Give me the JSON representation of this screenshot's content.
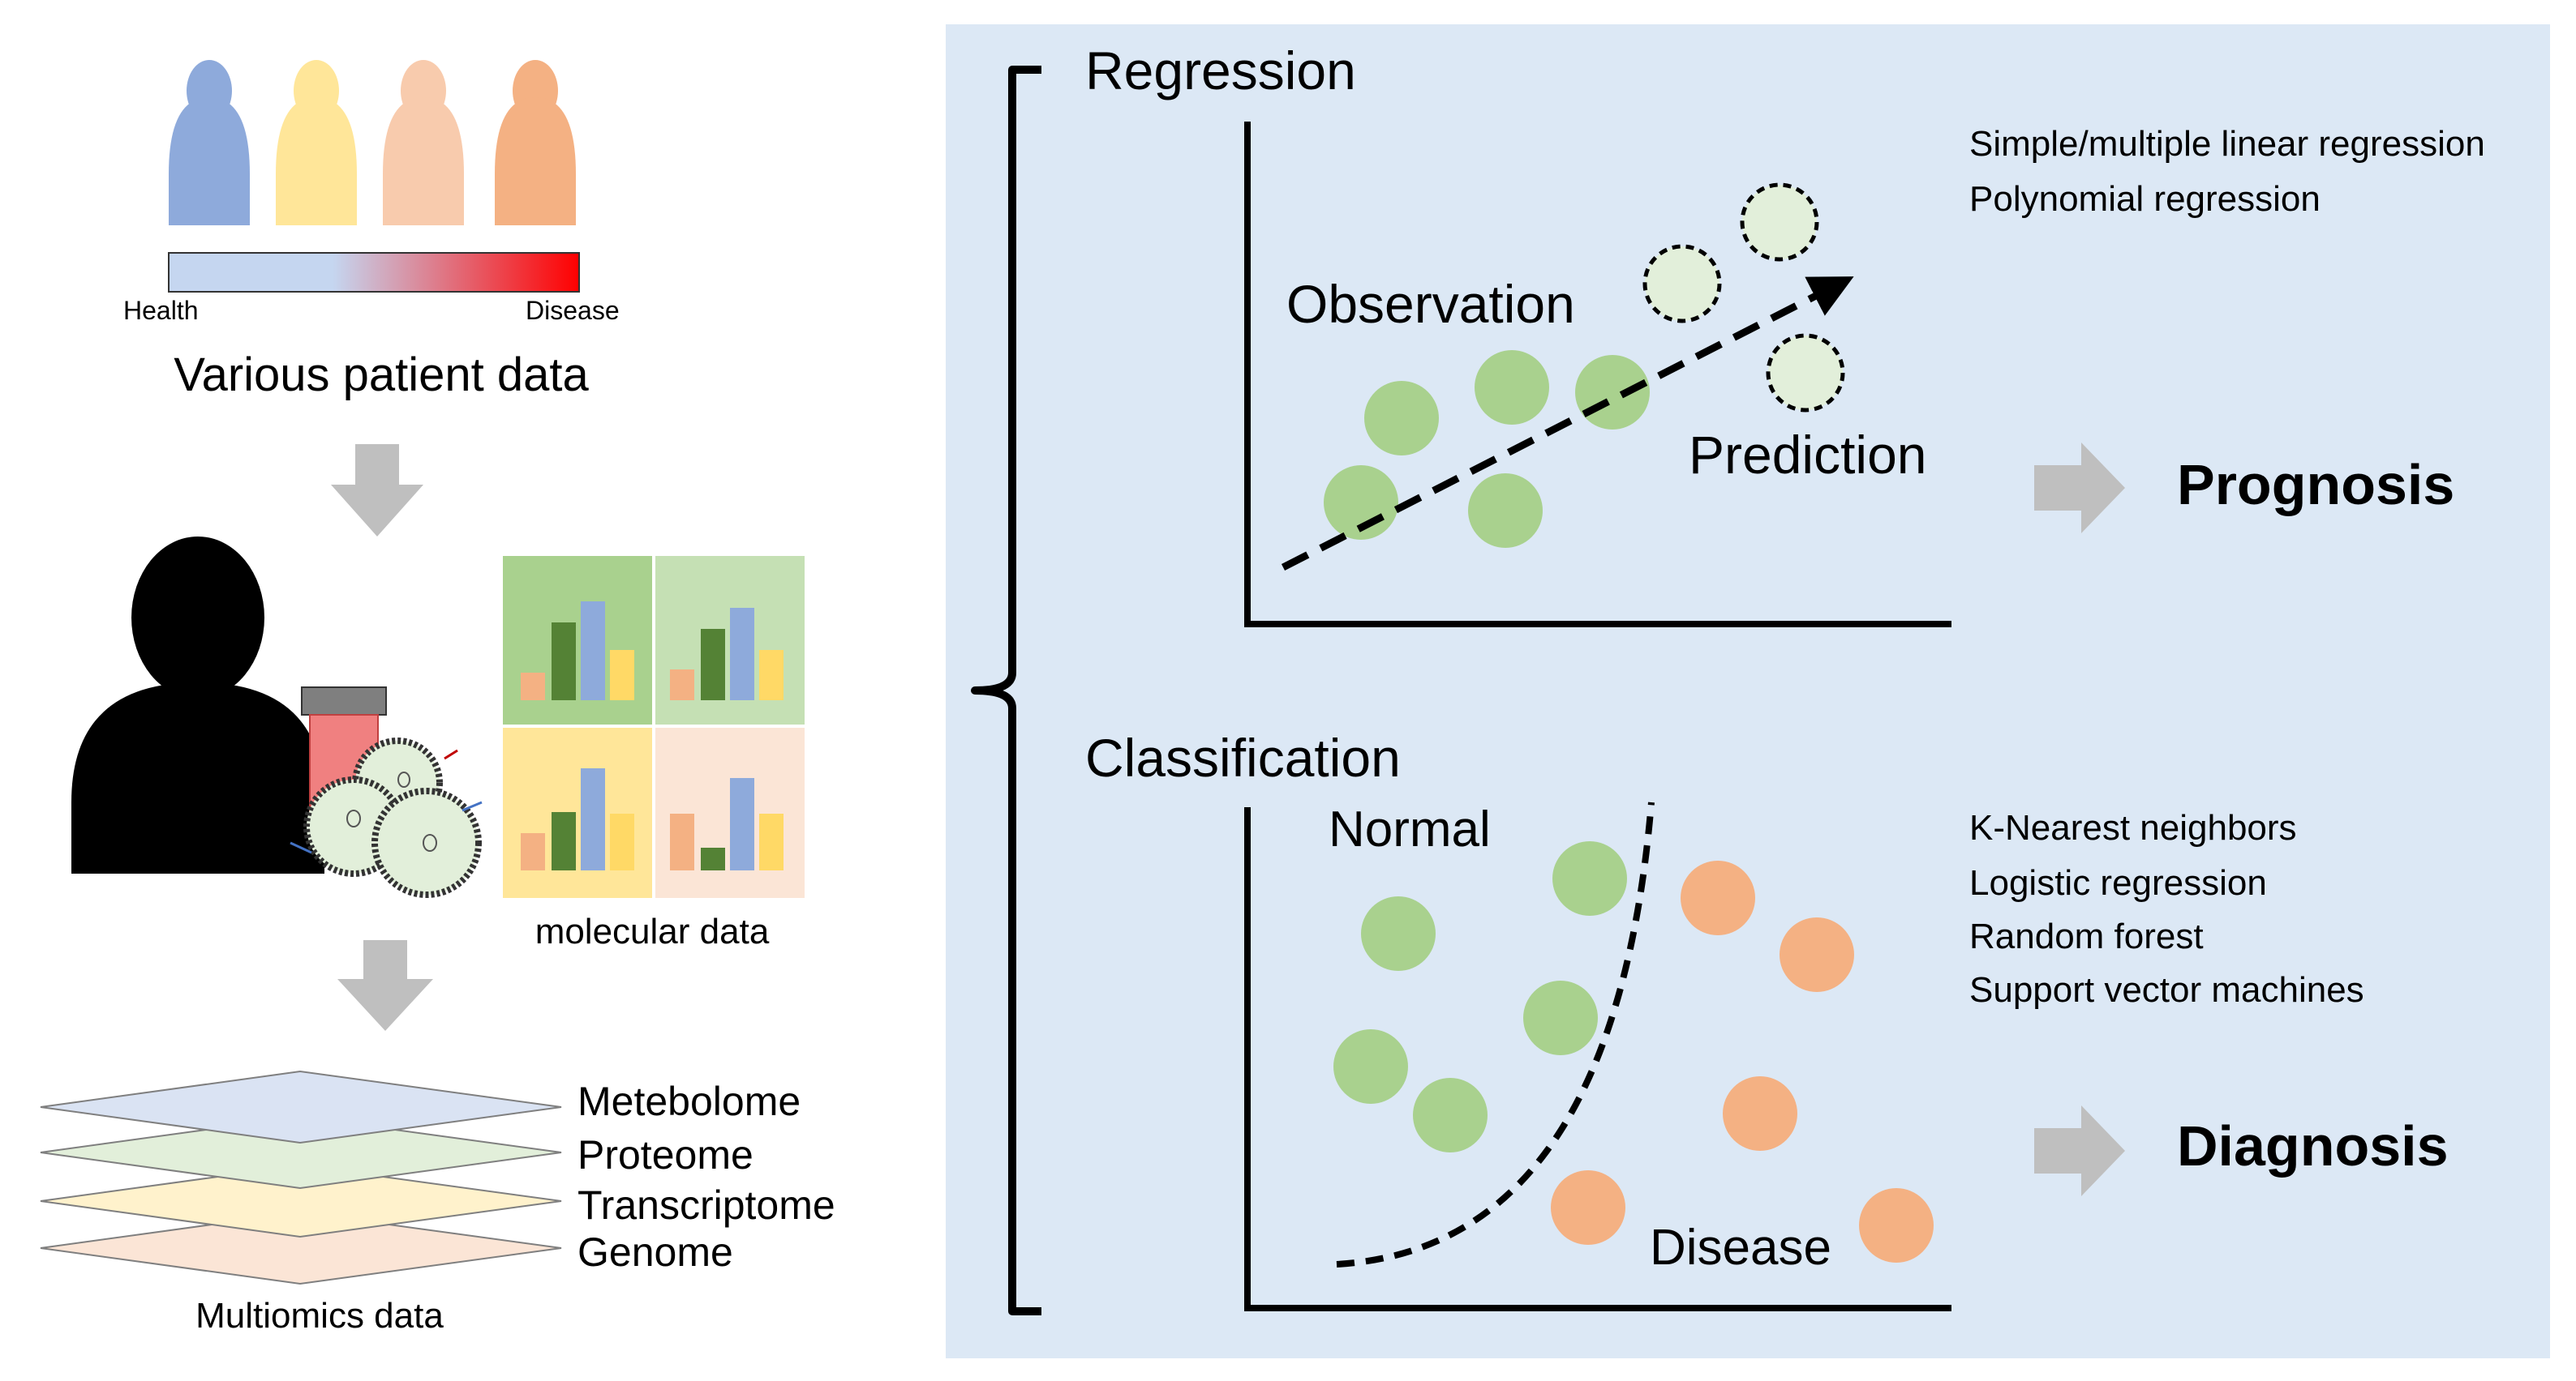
{
  "colors": {
    "panel_bg": "#dce8f5",
    "person_blue": "#8eaadb",
    "person_yellow": "#ffe699",
    "person_peach": "#f8cbad",
    "person_orange": "#f4b183",
    "green_dot": "#a9d18e",
    "orange_dot": "#f4b183",
    "pred_dot": "#e2efda",
    "arrow_gray": "#bfbfbf",
    "health": "#c5d6f0",
    "disease": "#ff0000"
  },
  "left": {
    "health_label": "Health",
    "disease_label": "Disease",
    "patient_data_label": "Various patient data",
    "molecular_label": "molecular data",
    "omics_layers": [
      "Metebolome",
      "Proteome",
      "Transcriptome",
      "Genome"
    ],
    "multiomics_label": "Multiomics data"
  },
  "regression": {
    "title": "Regression",
    "observation_label": "Observation",
    "prediction_label": "Prediction",
    "methods": [
      "Simple/multiple linear regression",
      "Polynomial regression"
    ],
    "outcome": "Prognosis"
  },
  "classification": {
    "title": "Classification",
    "normal_label": "Normal",
    "disease_label": "Disease",
    "methods": [
      "K-Nearest neighbors",
      "Logistic regression",
      "Random forest",
      "Support vector machines"
    ],
    "outcome": "Diagnosis"
  }
}
